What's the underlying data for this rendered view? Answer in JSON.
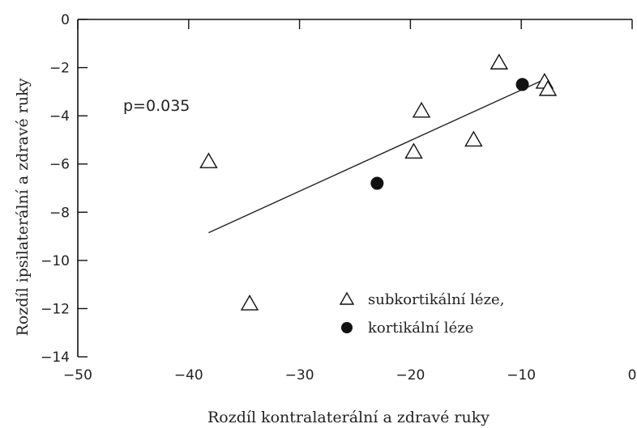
{
  "chart_data": {
    "type": "scatter",
    "xlabel": "Rozdíl kontralaterální a zdravé ruky",
    "ylabel": "Rozdíl ipsilaterální a zdravé ruky",
    "xlim": [
      -50,
      0
    ],
    "ylim": [
      -14,
      0
    ],
    "x_ticks": [
      -50,
      -40,
      -30,
      -20,
      -10,
      0
    ],
    "y_ticks": [
      0,
      -2,
      -4,
      -6,
      -8,
      -10,
      -12,
      -14
    ],
    "x_tick_labels": [
      "−50",
      "−40",
      "−30",
      "−20",
      "−10",
      "0"
    ],
    "y_tick_labels": [
      "0",
      "−2",
      "−4",
      "−6",
      "−8",
      "−10",
      "−12",
      "−14"
    ],
    "series": [
      {
        "name": "subkortikální léze,",
        "marker": "open-triangle",
        "points": [
          {
            "x": -38.2,
            "y": -5.9
          },
          {
            "x": -34.5,
            "y": -11.8
          },
          {
            "x": -19.7,
            "y": -5.5
          },
          {
            "x": -19.0,
            "y": -3.8
          },
          {
            "x": -14.3,
            "y": -5.0
          },
          {
            "x": -12.0,
            "y": -1.8
          },
          {
            "x": -7.9,
            "y": -2.6
          },
          {
            "x": -7.6,
            "y": -2.9
          }
        ]
      },
      {
        "name": "kortikální léze",
        "marker": "filled-circle",
        "points": [
          {
            "x": -23.0,
            "y": -6.8
          },
          {
            "x": -9.9,
            "y": -2.7
          }
        ]
      }
    ],
    "regression_line": {
      "x": [
        -38.2,
        -8.2
      ],
      "y": [
        -8.85,
        -2.55
      ]
    },
    "annotations": [
      {
        "text": "p=0.035"
      }
    ],
    "grid": false,
    "legend_position": "lower-right"
  }
}
